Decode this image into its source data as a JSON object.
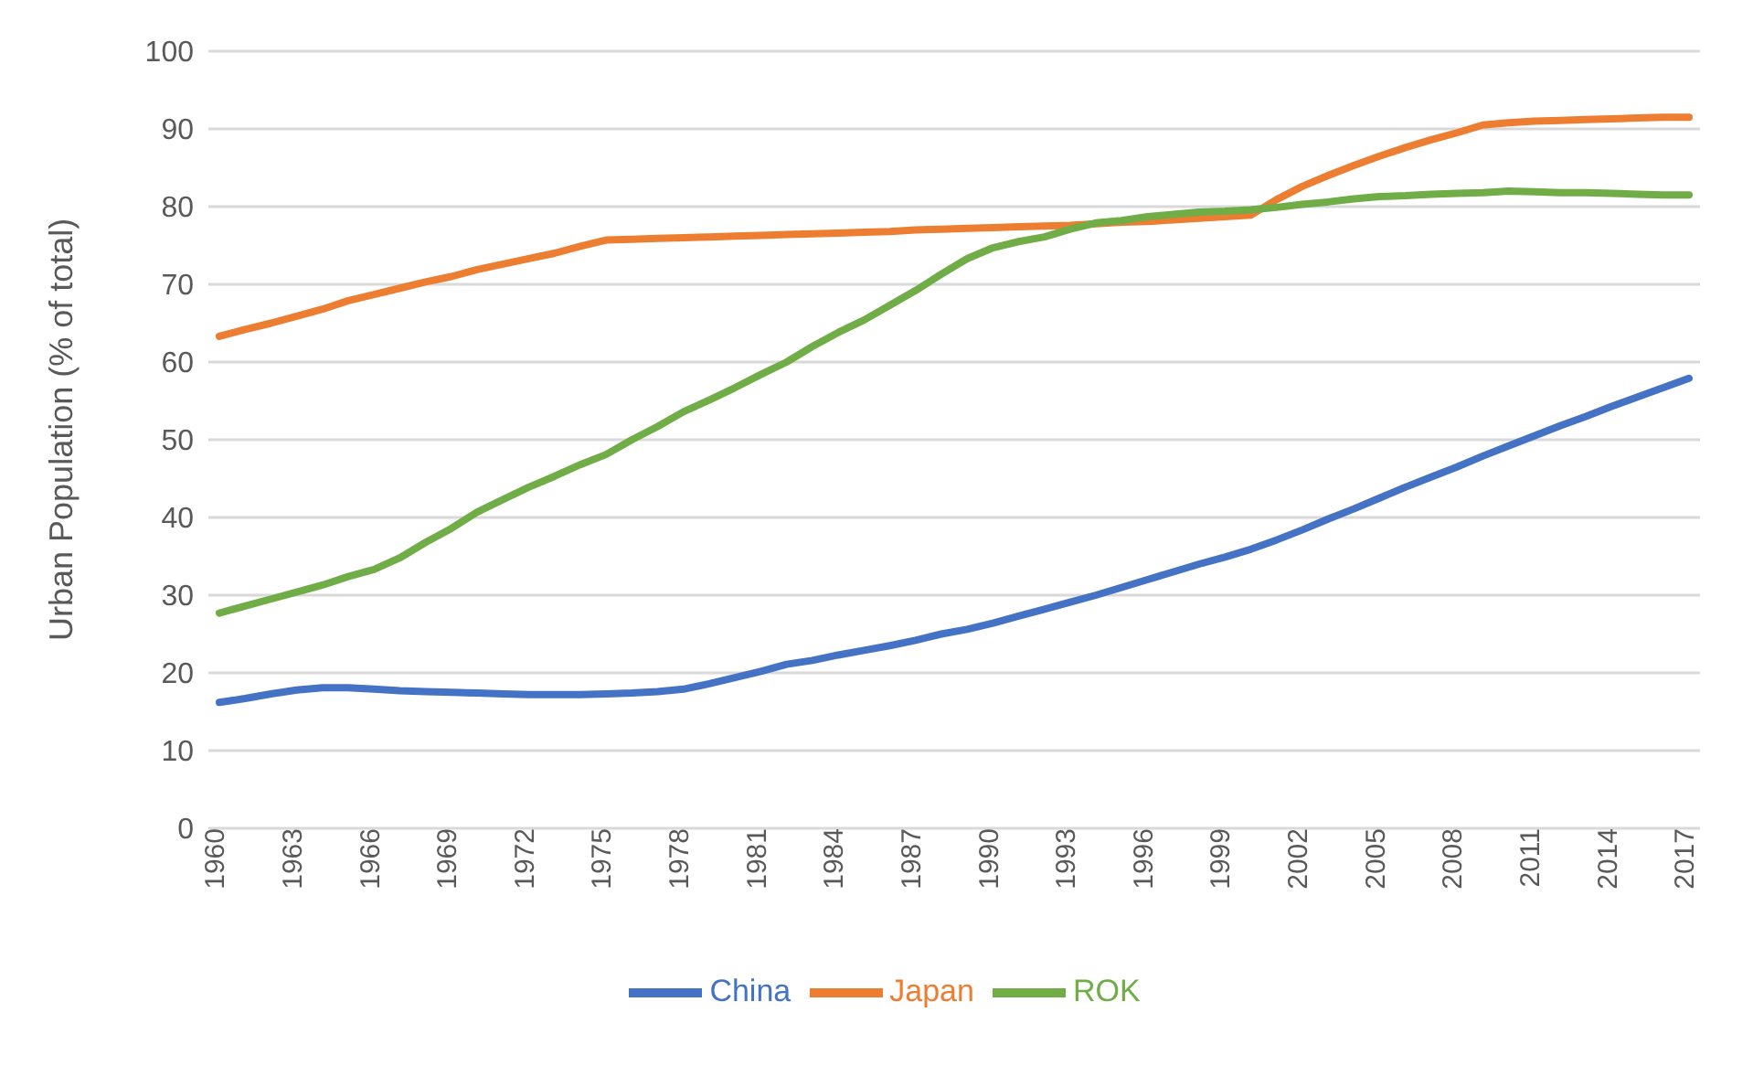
{
  "chart_data": {
    "type": "line",
    "ylabel": "Urban Population (% of total)",
    "categories": [
      "1960",
      null,
      null,
      "1963",
      null,
      null,
      "1966",
      null,
      null,
      "1969",
      null,
      null,
      "1972",
      null,
      null,
      "1975",
      null,
      null,
      "1978",
      null,
      null,
      "1981",
      null,
      null,
      "1984",
      null,
      null,
      "1987",
      null,
      null,
      "1990",
      null,
      null,
      "1993",
      null,
      null,
      "1996",
      null,
      null,
      "1999",
      null,
      null,
      "2002",
      null,
      null,
      "2005",
      null,
      null,
      "2008",
      null,
      null,
      "2011",
      null,
      null,
      "2014",
      null,
      null,
      "2017"
    ],
    "series": [
      {
        "name": "China",
        "color": "#4472c4",
        "values": [
          16.2,
          16.7,
          17.3,
          17.8,
          18.1,
          18.1,
          17.9,
          17.7,
          17.6,
          17.5,
          17.4,
          17.3,
          17.2,
          17.2,
          17.2,
          17.3,
          17.4,
          17.6,
          17.9,
          18.6,
          19.4,
          20.2,
          21.1,
          21.6,
          22.3,
          22.9,
          23.5,
          24.2,
          25.0,
          25.6,
          26.4,
          27.3,
          28.2,
          29.1,
          30.0,
          31.0,
          32.0,
          33.0,
          34.0,
          34.9,
          35.9,
          37.1,
          38.4,
          39.8,
          41.1,
          42.5,
          43.9,
          45.2,
          46.5,
          47.9,
          49.2,
          50.5,
          51.8,
          53.0,
          54.3,
          55.5,
          56.7,
          57.9
        ]
      },
      {
        "name": "Japan",
        "color": "#ed7d31",
        "values": [
          63.3,
          64.2,
          65.0,
          65.9,
          66.8,
          67.9,
          68.7,
          69.5,
          70.3,
          71.0,
          71.9,
          72.6,
          73.3,
          74.0,
          74.9,
          75.7,
          75.8,
          75.9,
          76.0,
          76.1,
          76.2,
          76.3,
          76.4,
          76.5,
          76.6,
          76.7,
          76.8,
          77.0,
          77.1,
          77.2,
          77.3,
          77.4,
          77.5,
          77.6,
          77.8,
          78.0,
          78.1,
          78.3,
          78.5,
          78.7,
          78.9,
          80.9,
          82.6,
          84.0,
          85.3,
          86.5,
          87.6,
          88.6,
          89.5,
          90.5,
          90.8,
          91.0,
          91.1,
          91.2,
          91.3,
          91.4,
          91.5,
          91.5
        ]
      },
      {
        "name": "ROK",
        "color": "#70ad47",
        "values": [
          27.7,
          28.6,
          29.5,
          30.4,
          31.3,
          32.4,
          33.3,
          34.8,
          36.8,
          38.6,
          40.7,
          42.3,
          43.9,
          45.3,
          46.8,
          48.1,
          50.0,
          51.7,
          53.6,
          55.1,
          56.7,
          58.4,
          60.0,
          62.0,
          63.8,
          65.4,
          67.3,
          69.2,
          71.3,
          73.3,
          74.7,
          75.5,
          76.1,
          77.1,
          77.9,
          78.2,
          78.7,
          79.0,
          79.3,
          79.4,
          79.6,
          79.9,
          80.3,
          80.6,
          81.0,
          81.3,
          81.4,
          81.6,
          81.7,
          81.8,
          82.0,
          81.9,
          81.8,
          81.8,
          81.7,
          81.6,
          81.5,
          81.5
        ]
      }
    ],
    "ylim": [
      0,
      100
    ],
    "yticks": [
      0,
      10,
      20,
      30,
      40,
      50,
      60,
      70,
      80,
      90,
      100
    ],
    "grid": "y",
    "legend": "bottom",
    "marker": "none",
    "line_style": "solid"
  }
}
